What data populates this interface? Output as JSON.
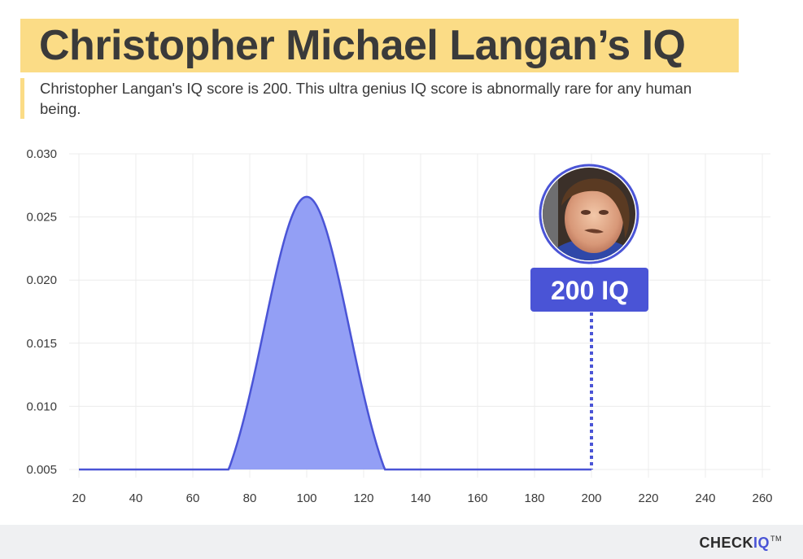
{
  "header": {
    "title": "Christopher Michael Langan’s IQ",
    "subtitle": "Christopher Langan's IQ score is 200. This ultra genius IQ score is abnormally rare for any human being."
  },
  "brand": {
    "name_part1": "CHECK",
    "name_part2": "IQ",
    "trademark": "TM"
  },
  "colors": {
    "title_band": "#fbdc86",
    "curve_fill": "#939ff5",
    "curve_stroke": "#4a54d6",
    "marker": "#4a54d6",
    "grid": "#ececec",
    "footer": "#eff0f2"
  },
  "chart_data": {
    "type": "area",
    "distribution": {
      "mean": 100,
      "sd": 15
    },
    "xlim": [
      20,
      260
    ],
    "ylim": [
      0.005,
      0.03
    ],
    "x_ticks": [
      20,
      40,
      60,
      80,
      100,
      120,
      140,
      160,
      180,
      200,
      220,
      240,
      260
    ],
    "y_ticks": [
      0.005,
      0.01,
      0.015,
      0.02,
      0.025,
      0.03
    ],
    "y_tick_labels": [
      "0.005",
      "0.010",
      "0.015",
      "0.020",
      "0.025",
      "0.030"
    ],
    "curve_x_range": [
      20,
      200
    ],
    "grid": true,
    "marker": {
      "x": 200,
      "label": "200 IQ",
      "icon": "portrait-photo"
    }
  }
}
